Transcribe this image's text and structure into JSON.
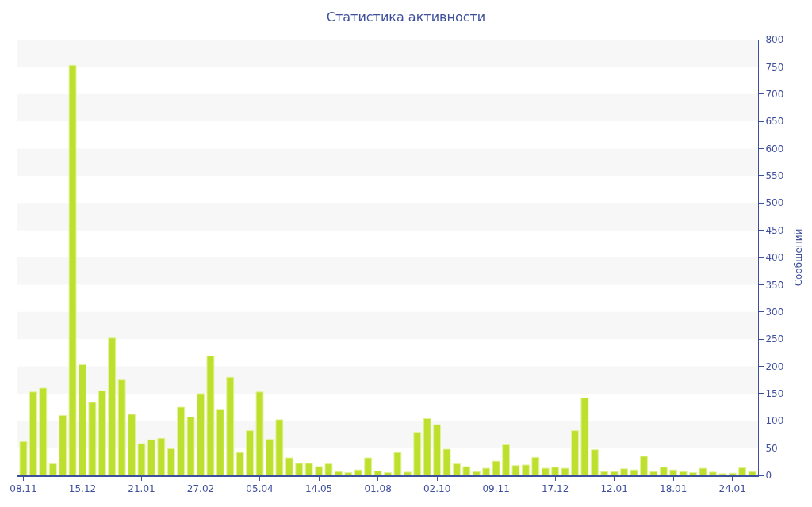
{
  "chart_data": {
    "type": "bar",
    "title": "Статистика активности",
    "ylabel": "Сообщений",
    "categories": [
      "08.11",
      null,
      null,
      null,
      null,
      null,
      "15.12",
      null,
      null,
      null,
      null,
      null,
      "21.01",
      null,
      null,
      null,
      null,
      null,
      "27.02",
      null,
      null,
      null,
      null,
      null,
      "05.04",
      null,
      null,
      null,
      null,
      null,
      "14.05",
      null,
      null,
      null,
      null,
      null,
      "01.08",
      null,
      null,
      null,
      null,
      null,
      "02.10",
      null,
      null,
      null,
      null,
      null,
      "09.11",
      null,
      null,
      null,
      null,
      null,
      "17.12",
      null,
      null,
      null,
      null,
      null,
      "12.01",
      null,
      null,
      null,
      null,
      null,
      "18.01",
      null,
      null,
      null,
      null,
      null,
      "24.01",
      null,
      null
    ],
    "values": [
      62,
      153,
      160,
      21,
      110,
      753,
      203,
      134,
      155,
      252,
      175,
      112,
      58,
      65,
      68,
      49,
      125,
      107,
      150,
      219,
      121,
      180,
      42,
      82,
      153,
      66,
      102,
      32,
      22,
      22,
      16,
      21,
      7,
      5,
      10,
      32,
      8,
      5,
      42,
      6,
      79,
      104,
      93,
      48,
      21,
      16,
      7,
      13,
      26,
      56,
      18,
      19,
      33,
      13,
      15,
      13,
      82,
      142,
      47,
      7,
      7,
      12,
      10,
      35,
      7,
      15,
      10,
      7,
      5,
      13,
      6,
      3,
      4,
      14,
      7
    ],
    "color": "#bde02f",
    "ylim": [
      0,
      800
    ],
    "yticks": [
      0,
      50,
      100,
      150,
      200,
      250,
      300,
      350,
      400,
      450,
      500,
      550,
      600,
      650,
      700,
      750,
      800
    ],
    "bands": [
      {
        "axis": "y",
        "from": 50,
        "to": 100,
        "color": "#f7f7f7"
      },
      {
        "axis": "y",
        "from": 150,
        "to": 200,
        "color": "#f7f7f7"
      },
      {
        "axis": "y",
        "from": 250,
        "to": 300,
        "color": "#f7f7f7"
      },
      {
        "axis": "y",
        "from": 350,
        "to": 400,
        "color": "#f7f7f7"
      },
      {
        "axis": "y",
        "from": 450,
        "to": 500,
        "color": "#f7f7f7"
      },
      {
        "axis": "y",
        "from": 550,
        "to": 600,
        "color": "#f7f7f7"
      },
      {
        "axis": "y",
        "from": 650,
        "to": 700,
        "color": "#f7f7f7"
      },
      {
        "axis": "y",
        "from": 750,
        "to": 800,
        "color": "#f7f7f7"
      }
    ]
  }
}
